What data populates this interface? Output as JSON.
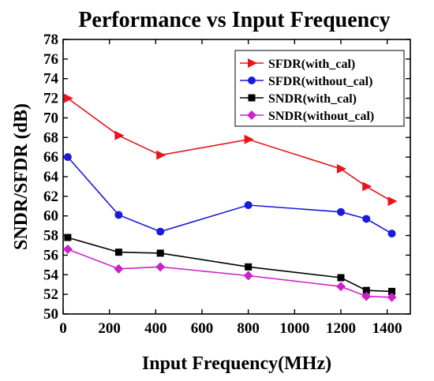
{
  "chart_data": {
    "type": "line",
    "title": "Performance vs Input Frequency",
    "xlabel": "Input Frequency(MHz)",
    "ylabel": "SNDR/SFDR (dB)",
    "xlim": [
      0,
      1500
    ],
    "ylim": [
      50,
      78
    ],
    "xticks": [
      0,
      200,
      400,
      600,
      800,
      1000,
      1200,
      1400
    ],
    "yticks": [
      50,
      52,
      54,
      56,
      58,
      60,
      62,
      64,
      66,
      68,
      70,
      72,
      74,
      76,
      78
    ],
    "grid": false,
    "legend_position": "top-right",
    "series": [
      {
        "name": "SFDR(with_cal)",
        "color": "#e8141c",
        "marker": "triangle-right",
        "x": [
          20,
          240,
          420,
          800,
          1200,
          1310,
          1420
        ],
        "y": [
          72.0,
          68.2,
          66.2,
          67.8,
          64.8,
          63.0,
          61.5
        ]
      },
      {
        "name": "SFDR(without_cal)",
        "color": "#1a1ad8",
        "marker": "circle",
        "x": [
          20,
          240,
          420,
          800,
          1200,
          1310,
          1420
        ],
        "y": [
          66.0,
          60.1,
          58.4,
          61.1,
          60.4,
          59.7,
          58.2
        ]
      },
      {
        "name": "SNDR(with_cal)",
        "color": "#000000",
        "marker": "square",
        "x": [
          20,
          240,
          420,
          800,
          1200,
          1310,
          1420
        ],
        "y": [
          57.8,
          56.3,
          56.2,
          54.8,
          53.7,
          52.4,
          52.3
        ]
      },
      {
        "name": "SNDR(without_cal)",
        "color": "#cc22cc",
        "marker": "diamond",
        "x": [
          20,
          240,
          420,
          800,
          1200,
          1310,
          1420
        ],
        "y": [
          56.6,
          54.6,
          54.8,
          53.9,
          52.8,
          51.8,
          51.7
        ]
      }
    ]
  }
}
